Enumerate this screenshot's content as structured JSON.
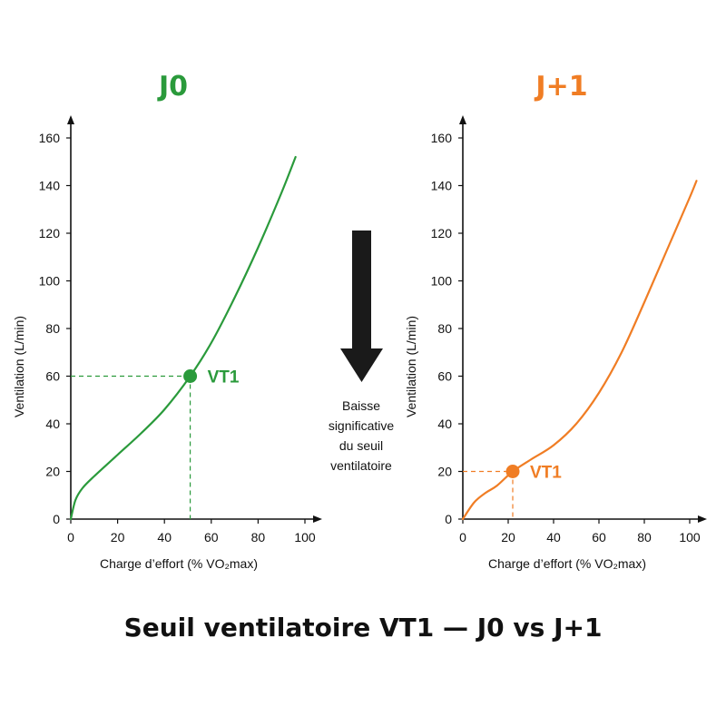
{
  "title": "Seuil ventilatoire VT1 — J0 vs J+1",
  "annotation": {
    "lines": [
      "Baisse",
      "significative",
      "du seuil",
      "ventilatoire"
    ]
  },
  "colors": {
    "j0": "#2a9a3b",
    "j1": "#f07d24",
    "axis": "#111111",
    "arrow": "#1a1a1a"
  },
  "chart_data": [
    {
      "type": "line",
      "title": "J0",
      "xlabel": "Charge d’effort (% VO₂max)",
      "ylabel": "Ventilation (L/min)",
      "xlim": [
        0,
        100
      ],
      "ylim": [
        0,
        160
      ],
      "xticks": [
        0,
        20,
        40,
        60,
        80,
        100
      ],
      "yticks": [
        0,
        20,
        40,
        60,
        80,
        100,
        120,
        140,
        160
      ],
      "grid": false,
      "series": [
        {
          "x": [
            0,
            2,
            5,
            10,
            20,
            30,
            40,
            51,
            60,
            70,
            80,
            90,
            96
          ],
          "y": [
            0,
            8,
            13,
            18,
            27,
            36,
            46,
            60,
            74,
            93,
            114,
            137,
            152
          ]
        }
      ],
      "threshold": {
        "label": "VT1",
        "x": 51,
        "y": 60
      }
    },
    {
      "type": "line",
      "title": "J+1",
      "xlabel": "Charge d’effort (% VO₂max)",
      "ylabel": "Ventilation (L/min)",
      "xlim": [
        0,
        100
      ],
      "ylim": [
        0,
        160
      ],
      "xticks": [
        0,
        20,
        40,
        60,
        80,
        100
      ],
      "yticks": [
        0,
        20,
        40,
        60,
        80,
        100,
        120,
        140,
        160
      ],
      "grid": false,
      "series": [
        {
          "x": [
            0,
            5,
            10,
            15,
            22,
            30,
            40,
            50,
            60,
            70,
            80,
            90,
            100,
            103
          ],
          "y": [
            0,
            7,
            11,
            14,
            20,
            25,
            31,
            40,
            53,
            70,
            91,
            113,
            135,
            142
          ]
        }
      ],
      "threshold": {
        "label": "VT1",
        "x": 22,
        "y": 20
      }
    }
  ]
}
